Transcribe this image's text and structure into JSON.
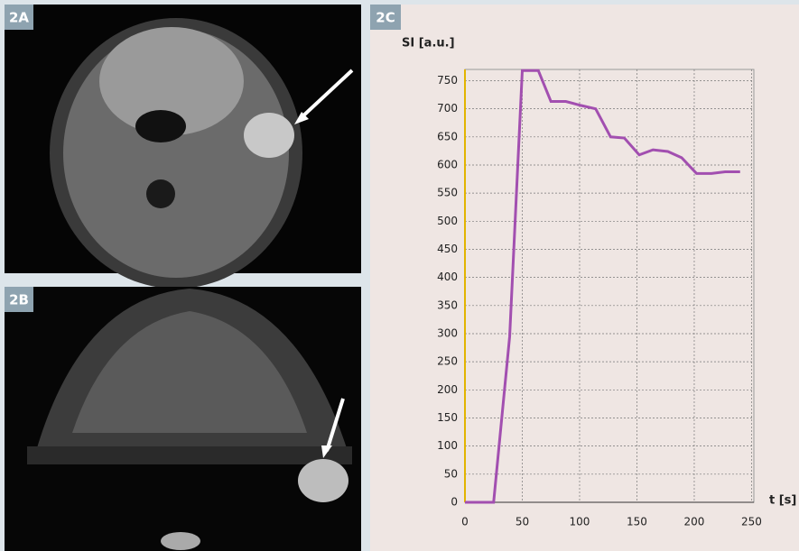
{
  "panel_labels": [
    "2A",
    "2B",
    "2C"
  ],
  "chart_data": {
    "type": "line",
    "y_label": "SI [a.u.]",
    "x_label": "t [s]",
    "x": [
      0,
      25,
      39,
      50,
      64,
      75,
      88,
      101,
      114,
      127,
      139,
      152,
      164,
      177,
      189,
      202,
      215,
      227,
      240
    ],
    "series": [
      {
        "color": "#a24fb0",
        "values": [
          0,
          0,
          295,
          768,
          768,
          713,
          713,
          706,
          700,
          650,
          648,
          618,
          627,
          624,
          613,
          585,
          585,
          588,
          588
        ]
      }
    ],
    "xlim": [
      0,
      252
    ],
    "ylim": [
      0,
      770
    ],
    "xticks": [
      0,
      50,
      100,
      150,
      200,
      250
    ],
    "yticks": [
      0,
      50,
      100,
      150,
      200,
      250,
      300,
      350,
      400,
      450,
      500,
      550,
      600,
      650,
      700,
      750
    ],
    "grid": true,
    "start_line_color": "#e2b400"
  }
}
